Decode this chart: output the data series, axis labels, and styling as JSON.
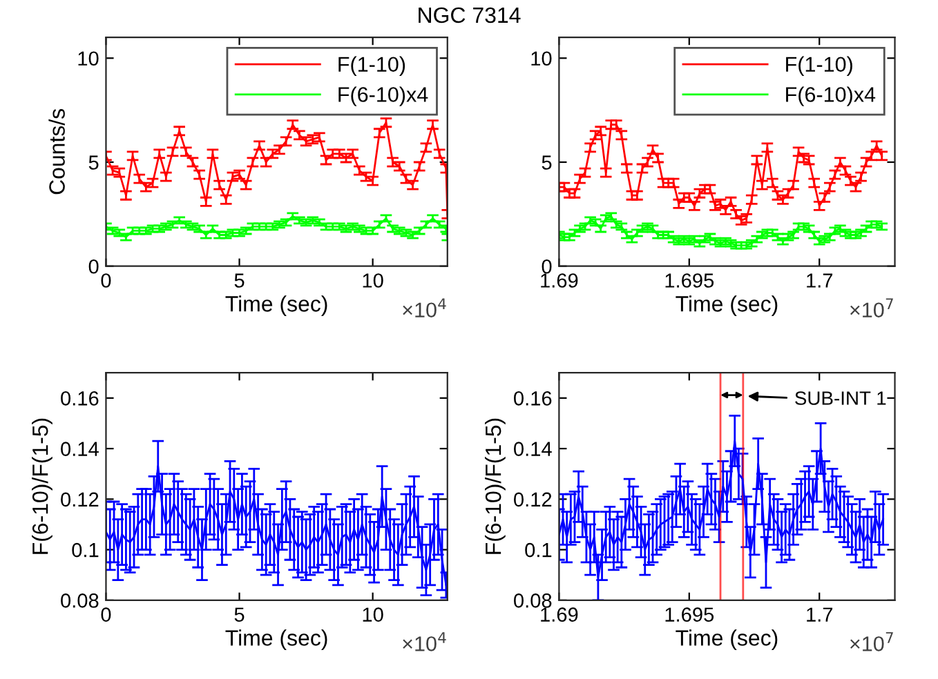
{
  "chart_data": [
    {
      "type": "line",
      "title": "NGC 7314",
      "xlabel": "Time (sec)",
      "ylabel": "Counts/s",
      "annotations": [
        "×10$^{4}$"
      ],
      "xlim": [
        0,
        12.8
      ],
      "ylim": [
        0,
        11
      ],
      "yticks": [
        0,
        5,
        10
      ],
      "xticks": [
        0,
        5,
        10
      ],
      "legend": "top right",
      "grid": false,
      "marker": "none",
      "line_style": "solid",
      "x": [
        0,
        0.25,
        0.5,
        0.75,
        1,
        1.25,
        1.5,
        1.75,
        2,
        2.25,
        2.5,
        2.75,
        3,
        3.25,
        3.5,
        3.75,
        4,
        4.25,
        4.5,
        4.75,
        5,
        5.25,
        5.5,
        5.75,
        6,
        6.25,
        6.5,
        6.75,
        7,
        7.25,
        7.5,
        7.75,
        8,
        8.25,
        8.5,
        8.75,
        9,
        9.25,
        9.5,
        9.75,
        10,
        10.25,
        10.5,
        10.75,
        11,
        11.25,
        11.5,
        11.75,
        12,
        12.25,
        12.5,
        12.75,
        12.8
      ],
      "series": [
        {
          "name": "F(1-10)",
          "color": "#ff0000",
          "values": [
            5.3,
            4.6,
            4.5,
            3.4,
            5.3,
            4.2,
            3.8,
            4.0,
            5.4,
            4.3,
            5.5,
            6.5,
            5.5,
            5.0,
            4.4,
            3.1,
            5.4,
            3.9,
            3.2,
            4.3,
            4.4,
            3.9,
            5.0,
            5.8,
            5.0,
            5.4,
            5.6,
            6.0,
            6.8,
            6.3,
            6.0,
            6.1,
            6.2,
            5.1,
            5.4,
            5.4,
            5.2,
            5.4,
            4.6,
            4.3,
            4.1,
            6.4,
            6.9,
            5.0,
            4.8,
            4.2,
            3.9,
            4.8,
            5.7,
            6.8,
            5.4,
            4.7,
            2.5
          ],
          "errors": [
            0.2,
            0.2,
            0.2,
            0.2,
            0.2,
            0.2,
            0.2,
            0.2,
            0.2,
            0.2,
            0.2,
            0.2,
            0.2,
            0.2,
            0.2,
            0.2,
            0.2,
            0.2,
            0.2,
            0.2,
            0.2,
            0.2,
            0.2,
            0.2,
            0.2,
            0.2,
            0.2,
            0.2,
            0.2,
            0.2,
            0.2,
            0.2,
            0.2,
            0.2,
            0.2,
            0.2,
            0.2,
            0.2,
            0.2,
            0.2,
            0.2,
            0.2,
            0.2,
            0.2,
            0.2,
            0.2,
            0.2,
            0.2,
            0.2,
            0.2,
            0.2,
            0.2,
            0.2
          ]
        },
        {
          "name": "F(6-10)x4",
          "color": "#00ff00",
          "values": [
            1.9,
            1.7,
            1.6,
            1.4,
            1.7,
            1.7,
            1.7,
            1.8,
            1.8,
            1.9,
            2.0,
            2.2,
            2.0,
            1.9,
            1.8,
            1.5,
            1.8,
            1.5,
            1.5,
            1.6,
            1.6,
            1.7,
            1.9,
            1.9,
            1.9,
            1.9,
            2.0,
            2.1,
            2.4,
            2.2,
            2.1,
            2.2,
            2.1,
            1.9,
            1.9,
            1.9,
            1.8,
            1.9,
            1.8,
            1.7,
            1.7,
            2.0,
            2.3,
            1.8,
            1.7,
            1.6,
            1.5,
            1.7,
            2.0,
            2.3,
            2.0,
            1.8,
            1.4
          ],
          "errors": [
            0.15,
            0.15,
            0.15,
            0.15,
            0.15,
            0.15,
            0.15,
            0.15,
            0.15,
            0.15,
            0.15,
            0.15,
            0.15,
            0.15,
            0.15,
            0.15,
            0.15,
            0.15,
            0.15,
            0.15,
            0.15,
            0.15,
            0.15,
            0.15,
            0.15,
            0.15,
            0.15,
            0.15,
            0.15,
            0.15,
            0.15,
            0.15,
            0.15,
            0.15,
            0.15,
            0.15,
            0.15,
            0.15,
            0.15,
            0.15,
            0.15,
            0.15,
            0.15,
            0.15,
            0.15,
            0.15,
            0.15,
            0.15,
            0.15,
            0.15,
            0.15,
            0.15,
            0.15
          ]
        }
      ]
    },
    {
      "type": "line",
      "xlabel": "Time (sec)",
      "annotations": [
        "×10$^{7}$"
      ],
      "xlim": [
        1.69,
        1.7029
      ],
      "ylim": [
        0,
        11
      ],
      "yticks": [
        0,
        5,
        10
      ],
      "xticks": [
        1.69,
        1.695,
        1.7
      ],
      "legend": "top right",
      "grid": false,
      "marker": "none",
      "line_style": "solid",
      "x": [
        1.69,
        1.6902,
        1.6904,
        1.6906,
        1.6908,
        1.691,
        1.6912,
        1.6914,
        1.6916,
        1.6918,
        1.692,
        1.6922,
        1.6924,
        1.6926,
        1.6928,
        1.693,
        1.6932,
        1.6934,
        1.6936,
        1.6938,
        1.694,
        1.6942,
        1.6944,
        1.6946,
        1.6948,
        1.695,
        1.6952,
        1.6954,
        1.6956,
        1.6958,
        1.696,
        1.6962,
        1.6964,
        1.6966,
        1.6968,
        1.697,
        1.6972,
        1.6974,
        1.6976,
        1.6978,
        1.698,
        1.6982,
        1.6984,
        1.6986,
        1.6988,
        1.699,
        1.6992,
        1.6994,
        1.6996,
        1.6998,
        1.7,
        1.7002,
        1.7004,
        1.7006,
        1.7008,
        1.701,
        1.7012,
        1.7014,
        1.7016,
        1.7018,
        1.702,
        1.7022,
        1.7024
      ],
      "series": [
        {
          "name": "F(1-10)",
          "color": "#ff0000",
          "values": [
            3.8,
            3.8,
            3.5,
            3.5,
            4.2,
            4.5,
            5.7,
            6.3,
            6.5,
            4.5,
            6.8,
            6.8,
            6.3,
            4.7,
            3.4,
            3.4,
            4.7,
            5.0,
            5.6,
            5.2,
            4.0,
            4.0,
            4.0,
            3.0,
            3.3,
            3.3,
            2.9,
            3.5,
            3.7,
            3.7,
            2.9,
            3.0,
            2.7,
            3.1,
            2.5,
            2.2,
            2.3,
            3.2,
            5.1,
            3.9,
            5.7,
            4.0,
            3.4,
            3.2,
            3.5,
            3.9,
            5.5,
            5.2,
            5.1,
            4.0,
            2.9,
            3.3,
            3.8,
            4.4,
            5.0,
            4.6,
            4.1,
            3.8,
            4.3,
            5.0,
            5.3,
            5.8,
            5.3
          ],
          "errors": [
            0.2,
            0.2,
            0.2,
            0.2,
            0.2,
            0.2,
            0.2,
            0.2,
            0.2,
            0.2,
            0.2,
            0.2,
            0.2,
            0.2,
            0.2,
            0.2,
            0.2,
            0.2,
            0.2,
            0.2,
            0.2,
            0.2,
            0.2,
            0.2,
            0.2,
            0.2,
            0.2,
            0.2,
            0.2,
            0.2,
            0.2,
            0.2,
            0.2,
            0.2,
            0.2,
            0.2,
            0.2,
            0.2,
            0.2,
            0.2,
            0.2,
            0.2,
            0.2,
            0.2,
            0.2,
            0.2,
            0.2,
            0.2,
            0.2,
            0.2,
            0.2,
            0.2,
            0.2,
            0.2,
            0.2,
            0.2,
            0.2,
            0.2,
            0.2,
            0.2,
            0.2,
            0.2,
            0.2
          ]
        },
        {
          "name": "F(6-10)x4",
          "color": "#00ff00",
          "values": [
            1.5,
            1.4,
            1.4,
            1.6,
            1.8,
            1.9,
            2.2,
            2.1,
            1.8,
            2.3,
            2.4,
            2.0,
            1.9,
            1.5,
            1.3,
            1.6,
            1.8,
            1.9,
            1.8,
            1.5,
            1.5,
            1.5,
            1.3,
            1.2,
            1.3,
            1.2,
            1.3,
            1.1,
            1.3,
            1.4,
            1.2,
            1.1,
            1.2,
            1.1,
            1.0,
            1.0,
            1.0,
            1.1,
            1.3,
            1.5,
            1.6,
            1.6,
            1.4,
            1.2,
            1.4,
            1.5,
            1.9,
            1.9,
            1.8,
            1.5,
            1.2,
            1.3,
            1.4,
            1.7,
            1.8,
            1.6,
            1.5,
            1.5,
            1.6,
            1.8,
            2.0,
            2.0,
            1.9
          ],
          "errors": [
            0.15,
            0.15,
            0.15,
            0.15,
            0.15,
            0.15,
            0.15,
            0.15,
            0.15,
            0.15,
            0.15,
            0.15,
            0.15,
            0.15,
            0.15,
            0.15,
            0.15,
            0.15,
            0.15,
            0.15,
            0.15,
            0.15,
            0.15,
            0.15,
            0.15,
            0.15,
            0.15,
            0.15,
            0.15,
            0.15,
            0.15,
            0.15,
            0.15,
            0.15,
            0.15,
            0.15,
            0.15,
            0.15,
            0.15,
            0.15,
            0.15,
            0.15,
            0.15,
            0.15,
            0.15,
            0.15,
            0.15,
            0.15,
            0.15,
            0.15,
            0.15,
            0.15,
            0.15,
            0.15,
            0.15,
            0.15,
            0.15,
            0.15,
            0.15,
            0.15,
            0.15,
            0.15,
            0.15
          ]
        }
      ]
    },
    {
      "type": "line",
      "xlabel": "Time (sec)",
      "ylabel": "F(6-10)/F(1-5)",
      "annotations": [
        "×10$^{4}$"
      ],
      "xlim": [
        0,
        12.8
      ],
      "ylim": [
        0.08,
        0.17
      ],
      "yticks": [
        0.08,
        0.1,
        0.12,
        0.14,
        0.16
      ],
      "xticks": [
        0,
        5,
        10
      ],
      "grid": false,
      "marker": "none",
      "line_style": "solid",
      "x": [
        0,
        0.15,
        0.3,
        0.45,
        0.6,
        0.75,
        0.9,
        1.05,
        1.2,
        1.35,
        1.5,
        1.65,
        1.8,
        1.95,
        2.1,
        2.25,
        2.4,
        2.55,
        2.7,
        2.85,
        3,
        3.15,
        3.3,
        3.45,
        3.6,
        3.75,
        3.9,
        4.05,
        4.2,
        4.35,
        4.5,
        4.65,
        4.8,
        4.95,
        5.1,
        5.25,
        5.4,
        5.55,
        5.7,
        5.85,
        6,
        6.15,
        6.3,
        6.45,
        6.6,
        6.75,
        6.9,
        7.05,
        7.2,
        7.35,
        7.5,
        7.65,
        7.8,
        7.95,
        8.1,
        8.25,
        8.4,
        8.55,
        8.7,
        8.85,
        9,
        9.15,
        9.3,
        9.45,
        9.6,
        9.75,
        9.9,
        10.05,
        10.2,
        10.35,
        10.5,
        10.65,
        10.8,
        10.95,
        11.1,
        11.25,
        11.4,
        11.55,
        11.7,
        11.85,
        12,
        12.15,
        12.3,
        12.45,
        12.6,
        12.75
      ],
      "series": [
        {
          "color": "#0000ff",
          "values": [
            0.107,
            0.104,
            0.107,
            0.1,
            0.106,
            0.104,
            0.103,
            0.105,
            0.11,
            0.112,
            0.112,
            0.11,
            0.117,
            0.133,
            0.118,
            0.11,
            0.112,
            0.118,
            0.115,
            0.112,
            0.11,
            0.108,
            0.112,
            0.105,
            0.1,
            0.112,
            0.118,
            0.116,
            0.112,
            0.106,
            0.11,
            0.123,
            0.12,
            0.112,
            0.118,
            0.113,
            0.115,
            0.12,
            0.11,
            0.104,
            0.102,
            0.106,
            0.103,
            0.098,
            0.112,
            0.115,
            0.108,
            0.104,
            0.101,
            0.103,
            0.1,
            0.102,
            0.105,
            0.103,
            0.106,
            0.11,
            0.104,
            0.1,
            0.098,
            0.105,
            0.106,
            0.103,
            0.108,
            0.104,
            0.11,
            0.105,
            0.102,
            0.099,
            0.104,
            0.121,
            0.112,
            0.104,
            0.1,
            0.098,
            0.106,
            0.11,
            0.113,
            0.117,
            0.109,
            0.097,
            0.092,
            0.098,
            0.108,
            0.11,
            0.096,
            0.086
          ],
          "errors": [
            0.012,
            0.012,
            0.012,
            0.012,
            0.012,
            0.012,
            0.012,
            0.012,
            0.012,
            0.012,
            0.012,
            0.012,
            0.012,
            0.01,
            0.012,
            0.012,
            0.012,
            0.012,
            0.012,
            0.012,
            0.012,
            0.012,
            0.012,
            0.012,
            0.012,
            0.012,
            0.012,
            0.012,
            0.012,
            0.012,
            0.012,
            0.012,
            0.012,
            0.012,
            0.012,
            0.012,
            0.012,
            0.012,
            0.012,
            0.012,
            0.012,
            0.012,
            0.012,
            0.012,
            0.012,
            0.012,
            0.012,
            0.012,
            0.012,
            0.012,
            0.012,
            0.012,
            0.012,
            0.012,
            0.012,
            0.012,
            0.012,
            0.012,
            0.012,
            0.012,
            0.012,
            0.012,
            0.012,
            0.012,
            0.012,
            0.012,
            0.012,
            0.012,
            0.012,
            0.012,
            0.012,
            0.012,
            0.012,
            0.012,
            0.012,
            0.012,
            0.012,
            0.012,
            0.012,
            0.012,
            0.01,
            0.012,
            0.012,
            0.012,
            0.012,
            0.005
          ]
        }
      ]
    },
    {
      "type": "line",
      "xlabel": "Time (sec)",
      "ylabel": "F(6-10)/F(1-5)",
      "annotations": [
        "×10$^{7}$",
        {
          "text": "SUB-INT 1",
          "x": 1.6971,
          "y": 0.1608
        }
      ],
      "xlim": [
        1.69,
        1.7029
      ],
      "ylim": [
        0.08,
        0.17
      ],
      "yticks": [
        0.08,
        0.1,
        0.12,
        0.14,
        0.16
      ],
      "xticks": [
        1.69,
        1.695,
        1.7
      ],
      "grid": false,
      "marker": "none",
      "line_style": "solid",
      "ref_lines": [
        {
          "axis": "x",
          "value": 1.6962,
          "color": "#ff0000"
        },
        {
          "axis": "x",
          "value": 1.69707,
          "color": "#ff0000"
        }
      ],
      "x": [
        1.69,
        1.69015,
        1.6903,
        1.69045,
        1.6906,
        1.69075,
        1.6909,
        1.69105,
        1.6912,
        1.69135,
        1.6915,
        1.69165,
        1.6918,
        1.69195,
        1.6921,
        1.69225,
        1.6924,
        1.69255,
        1.6927,
        1.69285,
        1.693,
        1.69315,
        1.6933,
        1.69345,
        1.6936,
        1.69375,
        1.6939,
        1.69405,
        1.6942,
        1.69435,
        1.6945,
        1.69465,
        1.6948,
        1.69495,
        1.6951,
        1.69525,
        1.6954,
        1.69555,
        1.6957,
        1.69585,
        1.696,
        1.69615,
        1.6963,
        1.69645,
        1.6966,
        1.69675,
        1.6969,
        1.69705,
        1.6972,
        1.69735,
        1.6975,
        1.69765,
        1.6978,
        1.69795,
        1.6981,
        1.69825,
        1.6984,
        1.69855,
        1.6987,
        1.69885,
        1.699,
        1.69915,
        1.6993,
        1.69945,
        1.6996,
        1.69975,
        1.6999,
        1.70005,
        1.7002,
        1.70035,
        1.7005,
        1.70065,
        1.7008,
        1.70095,
        1.7011,
        1.70125,
        1.7014,
        1.70155,
        1.7017,
        1.70185,
        1.702,
        1.70215,
        1.7023,
        1.70245
      ],
      "series": [
        {
          "color": "#0000ff",
          "values": [
            0.106,
            0.112,
            0.105,
            0.112,
            0.113,
            0.121,
            0.115,
            0.105,
            0.1,
            0.105,
            0.089,
            0.098,
            0.105,
            0.107,
            0.102,
            0.105,
            0.103,
            0.11,
            0.118,
            0.115,
            0.111,
            0.107,
            0.1,
            0.104,
            0.105,
            0.108,
            0.11,
            0.111,
            0.112,
            0.113,
            0.119,
            0.124,
            0.115,
            0.117,
            0.112,
            0.11,
            0.108,
            0.115,
            0.124,
            0.12,
            0.118,
            0.113,
            0.125,
            0.121,
            0.129,
            0.143,
            0.13,
            0.128,
            0.111,
            0.099,
            0.108,
            0.134,
            0.12,
            0.095,
            0.118,
            0.112,
            0.11,
            0.105,
            0.108,
            0.106,
            0.112,
            0.116,
            0.118,
            0.121,
            0.123,
            0.118,
            0.129,
            0.14,
            0.125,
            0.117,
            0.122,
            0.119,
            0.115,
            0.113,
            0.111,
            0.108,
            0.105,
            0.11,
            0.103,
            0.106,
            0.103,
            0.113,
            0.108,
            0.112
          ],
          "errors": [
            0.01,
            0.01,
            0.01,
            0.01,
            0.01,
            0.01,
            0.01,
            0.01,
            0.01,
            0.01,
            0.009,
            0.01,
            0.01,
            0.01,
            0.01,
            0.01,
            0.01,
            0.01,
            0.01,
            0.01,
            0.01,
            0.01,
            0.01,
            0.01,
            0.01,
            0.01,
            0.01,
            0.01,
            0.01,
            0.01,
            0.01,
            0.01,
            0.01,
            0.01,
            0.01,
            0.01,
            0.01,
            0.01,
            0.01,
            0.01,
            0.01,
            0.01,
            0.01,
            0.01,
            0.01,
            0.01,
            0.01,
            0.01,
            0.01,
            0.01,
            0.01,
            0.01,
            0.01,
            0.01,
            0.01,
            0.01,
            0.01,
            0.01,
            0.01,
            0.01,
            0.01,
            0.01,
            0.01,
            0.01,
            0.01,
            0.01,
            0.01,
            0.01,
            0.01,
            0.01,
            0.01,
            0.01,
            0.01,
            0.01,
            0.01,
            0.01,
            0.01,
            0.01,
            0.01,
            0.01,
            0.01,
            0.01,
            0.01,
            0.01
          ]
        }
      ]
    }
  ]
}
